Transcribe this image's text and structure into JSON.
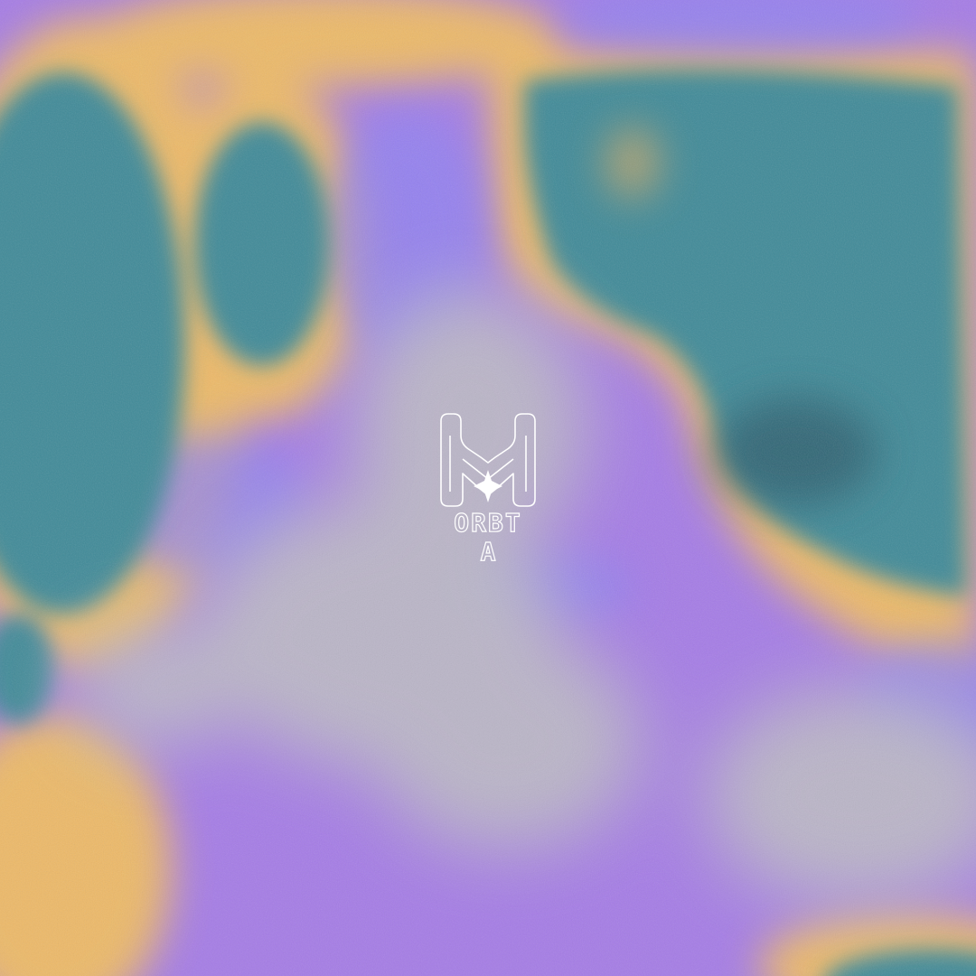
{
  "artwork": {
    "palette": {
      "violet": "#a57ce6",
      "periwinkle": "#8f83f2",
      "teal": "#3f8a98",
      "deep_teal": "#2f6e82",
      "amber": "#f1bd62",
      "silver": "#bdbcc4"
    }
  },
  "logo": {
    "wordmark_line1": "ORBT",
    "wordmark_line2": "A",
    "sparkle_icon": "four-point-star-icon",
    "color": "#ffffff"
  }
}
